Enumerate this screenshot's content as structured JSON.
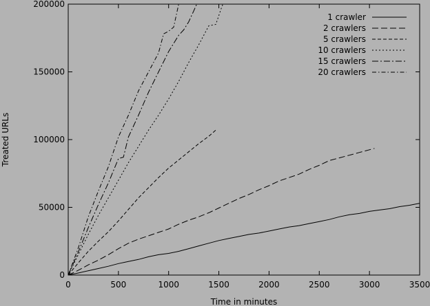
{
  "chart_data": {
    "type": "line",
    "title": "",
    "xlabel": "Time in minutes",
    "ylabel": "Treated URLs",
    "xlim": [
      0,
      3500
    ],
    "ylim": [
      0,
      200000
    ],
    "xticks": [
      0,
      500,
      1000,
      1500,
      2000,
      2500,
      3000,
      3500
    ],
    "yticks": [
      0,
      50000,
      100000,
      150000,
      200000
    ],
    "grid": false,
    "legend_position": "top-right",
    "background": "#b3b3b3",
    "series": [
      {
        "name": "1 crawler",
        "dash": "solid",
        "points": [
          [
            0,
            0
          ],
          [
            100,
            1500
          ],
          [
            200,
            3200
          ],
          [
            300,
            4800
          ],
          [
            400,
            6500
          ],
          [
            500,
            8500
          ],
          [
            600,
            10000
          ],
          [
            700,
            11500
          ],
          [
            800,
            13500
          ],
          [
            900,
            15000
          ],
          [
            1000,
            16000
          ],
          [
            1100,
            17500
          ],
          [
            1200,
            19500
          ],
          [
            1300,
            21500
          ],
          [
            1400,
            23500
          ],
          [
            1500,
            25500
          ],
          [
            1600,
            27000
          ],
          [
            1700,
            28500
          ],
          [
            1800,
            30000
          ],
          [
            1900,
            31000
          ],
          [
            2000,
            32500
          ],
          [
            2100,
            34000
          ],
          [
            2200,
            35500
          ],
          [
            2300,
            36500
          ],
          [
            2400,
            38000
          ],
          [
            2500,
            39500
          ],
          [
            2600,
            41000
          ],
          [
            2700,
            43000
          ],
          [
            2800,
            44500
          ],
          [
            2900,
            45500
          ],
          [
            3000,
            47000
          ],
          [
            3100,
            48000
          ],
          [
            3200,
            49000
          ],
          [
            3300,
            50500
          ],
          [
            3400,
            51500
          ],
          [
            3500,
            53000
          ]
        ]
      },
      {
        "name": "2 crawlers",
        "dash": "long",
        "points": [
          [
            0,
            0
          ],
          [
            100,
            3500
          ],
          [
            200,
            7500
          ],
          [
            300,
            11000
          ],
          [
            400,
            15000
          ],
          [
            500,
            19500
          ],
          [
            600,
            23500
          ],
          [
            700,
            26500
          ],
          [
            800,
            29000
          ],
          [
            900,
            31500
          ],
          [
            1000,
            34000
          ],
          [
            1100,
            37500
          ],
          [
            1200,
            40500
          ],
          [
            1300,
            43000
          ],
          [
            1400,
            46000
          ],
          [
            1500,
            49500
          ],
          [
            1600,
            53000
          ],
          [
            1700,
            56500
          ],
          [
            1800,
            59500
          ],
          [
            1900,
            63000
          ],
          [
            2000,
            66000
          ],
          [
            2100,
            69500
          ],
          [
            2200,
            72000
          ],
          [
            2300,
            74500
          ],
          [
            2400,
            78000
          ],
          [
            2500,
            81000
          ],
          [
            2600,
            84500
          ],
          [
            2700,
            86500
          ],
          [
            2800,
            88500
          ],
          [
            2900,
            90500
          ],
          [
            3000,
            92500
          ],
          [
            3050,
            93500
          ]
        ]
      },
      {
        "name": "5 crawlers",
        "dash": "medium",
        "points": [
          [
            0,
            0
          ],
          [
            100,
            9000
          ],
          [
            200,
            17500
          ],
          [
            300,
            25000
          ],
          [
            400,
            32000
          ],
          [
            500,
            40000
          ],
          [
            600,
            48500
          ],
          [
            700,
            57000
          ],
          [
            800,
            64500
          ],
          [
            900,
            72000
          ],
          [
            1000,
            79000
          ],
          [
            1100,
            85000
          ],
          [
            1200,
            91000
          ],
          [
            1300,
            97000
          ],
          [
            1400,
            102500
          ],
          [
            1470,
            107000
          ]
        ]
      },
      {
        "name": "10 crawlers",
        "dash": "short",
        "points": [
          [
            0,
            0
          ],
          [
            100,
            15000
          ],
          [
            200,
            30000
          ],
          [
            300,
            44000
          ],
          [
            400,
            57000
          ],
          [
            500,
            70000
          ],
          [
            600,
            83000
          ],
          [
            700,
            95000
          ],
          [
            800,
            107000
          ],
          [
            900,
            118000
          ],
          [
            1000,
            130000
          ],
          [
            1100,
            143000
          ],
          [
            1200,
            157000
          ],
          [
            1300,
            170000
          ],
          [
            1400,
            184000
          ],
          [
            1470,
            185000
          ],
          [
            1520,
            196000
          ],
          [
            1540,
            200000
          ]
        ]
      },
      {
        "name": "15 crawlers",
        "dash": "dashdot",
        "points": [
          [
            0,
            0
          ],
          [
            100,
            17000
          ],
          [
            200,
            35000
          ],
          [
            300,
            52000
          ],
          [
            400,
            68000
          ],
          [
            500,
            86000
          ],
          [
            550,
            87000
          ],
          [
            600,
            102000
          ],
          [
            700,
            118000
          ],
          [
            800,
            135000
          ],
          [
            900,
            150000
          ],
          [
            1000,
            165000
          ],
          [
            1100,
            177000
          ],
          [
            1150,
            181000
          ],
          [
            1200,
            187000
          ],
          [
            1250,
            195000
          ],
          [
            1280,
            200000
          ]
        ]
      },
      {
        "name": "20 crawlers",
        "dash": "dashdot2",
        "points": [
          [
            0,
            0
          ],
          [
            100,
            20000
          ],
          [
            200,
            43000
          ],
          [
            300,
            62000
          ],
          [
            400,
            80000
          ],
          [
            500,
            102000
          ],
          [
            600,
            118000
          ],
          [
            700,
            136000
          ],
          [
            800,
            150000
          ],
          [
            900,
            164000
          ],
          [
            950,
            178000
          ],
          [
            1000,
            180000
          ],
          [
            1050,
            183000
          ],
          [
            1100,
            200000
          ]
        ]
      }
    ]
  }
}
